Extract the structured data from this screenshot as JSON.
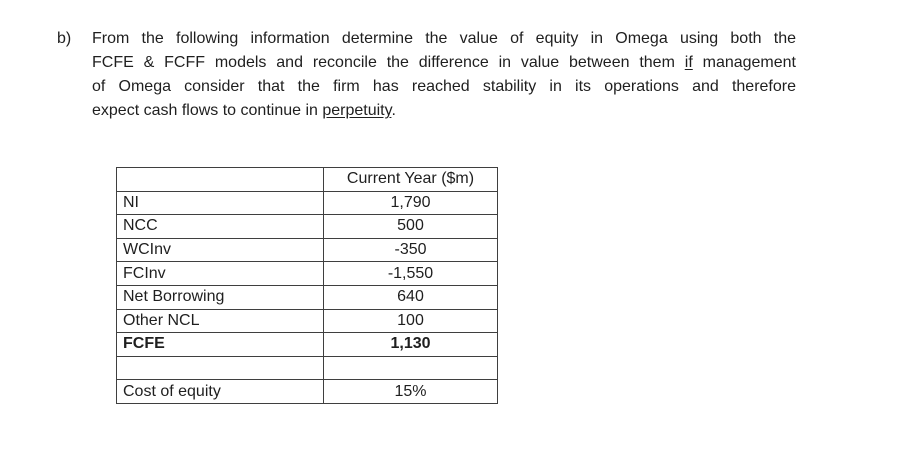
{
  "question": {
    "marker": "b)",
    "lines": [
      {
        "text": "From the following information determine the value of equity in Omega using both the"
      },
      {
        "before": "FCFE & FCFF models and reconcile the difference in value between them ",
        "underline": "if",
        "after": " management"
      },
      {
        "text": "of Omega consider that the firm has reached stability in its operations and therefore"
      },
      {
        "before": "expect cash flows to continue in ",
        "underline": "perpetuity",
        "after": "."
      }
    ]
  },
  "table": {
    "header": {
      "label": "",
      "value": "Current Year ($m)"
    },
    "rows": [
      {
        "label": "NI",
        "value": "1,790"
      },
      {
        "label": "NCC",
        "value": "500"
      },
      {
        "label": "WCInv",
        "value": "-350"
      },
      {
        "label": "FCInv",
        "value": "-1,550"
      },
      {
        "label": "Net Borrowing",
        "value": "640"
      },
      {
        "label": "Other NCL",
        "value": "100"
      },
      {
        "label": "FCFE",
        "value": "1,130"
      },
      {
        "label": "",
        "value": ""
      },
      {
        "label": "Cost of equity",
        "value": "15%"
      }
    ]
  },
  "colors": {
    "text": "#1f1f1f",
    "table_border": "#3f3f3f",
    "background": "#ffffff"
  }
}
